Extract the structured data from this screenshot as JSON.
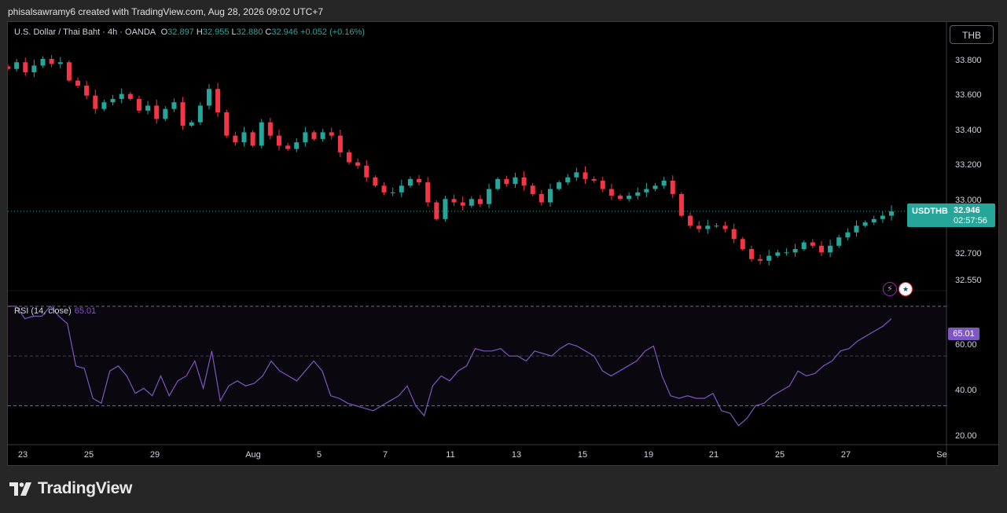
{
  "caption": "phisalsawramy6 created with TradingView.com, Aug 28, 2026 09:02 UTC+7",
  "legend": {
    "symbol_desc": "U.S. Dollar / Thai Baht · 4h · OANDA",
    "o_label": "O",
    "o": "32.897",
    "h_label": "H",
    "h": "32.955",
    "l_label": "L",
    "l": "32.880",
    "c_label": "C",
    "c": "32.946",
    "change": "+0.052 (+0.16%)"
  },
  "currency_button": "THB",
  "price_tag": {
    "symbol": "USDTHB",
    "price": "32.946",
    "countdown": "02:57:56"
  },
  "rsi": {
    "label": "RSI (14, close)",
    "value": "65.01"
  },
  "brand": "TradingView",
  "colors": {
    "up": "#26a69a",
    "down": "#f23645",
    "rsi": "#7e57c2",
    "background": "#000000"
  },
  "icons": [
    "lightning-event-icon",
    "us-flag-event-icon",
    "tradingview-logo-icon"
  ],
  "chart_data": [
    {
      "type": "candlestick",
      "title": "U.S. Dollar / Thai Baht · 4h · OANDA",
      "ylim": [
        32.48,
        33.94
      ],
      "y_ticks": [
        "33.800",
        "33.600",
        "33.400",
        "33.200",
        "33.000",
        "32.700",
        "32.550"
      ],
      "x_ticks": [
        "23",
        "25",
        "29",
        "Aug",
        "5",
        "7",
        "11",
        "13",
        "15",
        "19",
        "21",
        "25",
        "27",
        "Se"
      ],
      "last_price": 32.946,
      "close_path": [
        33.8,
        33.84,
        33.78,
        33.82,
        33.86,
        33.83,
        33.84,
        33.73,
        33.7,
        33.64,
        33.56,
        33.6,
        33.62,
        33.65,
        33.62,
        33.55,
        33.58,
        33.5,
        33.56,
        33.6,
        33.46,
        33.48,
        33.58,
        33.68,
        33.54,
        33.4,
        33.36,
        33.42,
        33.34,
        33.48,
        33.4,
        33.34,
        33.32,
        33.36,
        33.42,
        33.38,
        33.42,
        33.4,
        33.3,
        33.24,
        33.22,
        33.15,
        33.1,
        33.06,
        33.06,
        33.1,
        33.14,
        33.12,
        33.0,
        32.9,
        33.02,
        33.0,
        32.98,
        33.02,
        32.99,
        33.08,
        33.14,
        33.11,
        33.15,
        33.1,
        33.05,
        33.0,
        33.08,
        33.12,
        33.15,
        33.18,
        33.14,
        33.13,
        33.08,
        33.04,
        33.02,
        33.04,
        33.06,
        33.08,
        33.1,
        33.13,
        33.05,
        32.92,
        32.86,
        32.84,
        32.86,
        32.86,
        32.84,
        32.78,
        32.72,
        32.66,
        32.65,
        32.68,
        32.7,
        32.7,
        32.72,
        32.76,
        32.74,
        32.7,
        32.74,
        32.79,
        32.82,
        32.86,
        32.88,
        32.9,
        32.92,
        32.946
      ]
    },
    {
      "type": "line",
      "title": "RSI (14, close)",
      "ylim": [
        15,
        75
      ],
      "y_ticks": [
        "60.00",
        "40.00",
        "20.00"
      ],
      "bands": [
        70,
        50,
        30
      ],
      "last_value": 65.01,
      "values": [
        70,
        70,
        65,
        66,
        66,
        70,
        66,
        63,
        46,
        45,
        33,
        31,
        44,
        46,
        42,
        35,
        37,
        34,
        42,
        34,
        40,
        42,
        48,
        37,
        52,
        32,
        38,
        40,
        38,
        39,
        42,
        48,
        44,
        42,
        40,
        44,
        48,
        44,
        34,
        33,
        31,
        30,
        29,
        28,
        30,
        32,
        34,
        38,
        30,
        26,
        38,
        42,
        40,
        44,
        46,
        53,
        52,
        52,
        53,
        50,
        50,
        48,
        52,
        51,
        50,
        53,
        55,
        54,
        52,
        50,
        44,
        42,
        44,
        46,
        48,
        52,
        54,
        42,
        34,
        33,
        34,
        33,
        33,
        35,
        28,
        27,
        22,
        25,
        30,
        31,
        34,
        36,
        38,
        44,
        42,
        43,
        46,
        48,
        52,
        53,
        56,
        58,
        60,
        62,
        65.01
      ]
    }
  ]
}
